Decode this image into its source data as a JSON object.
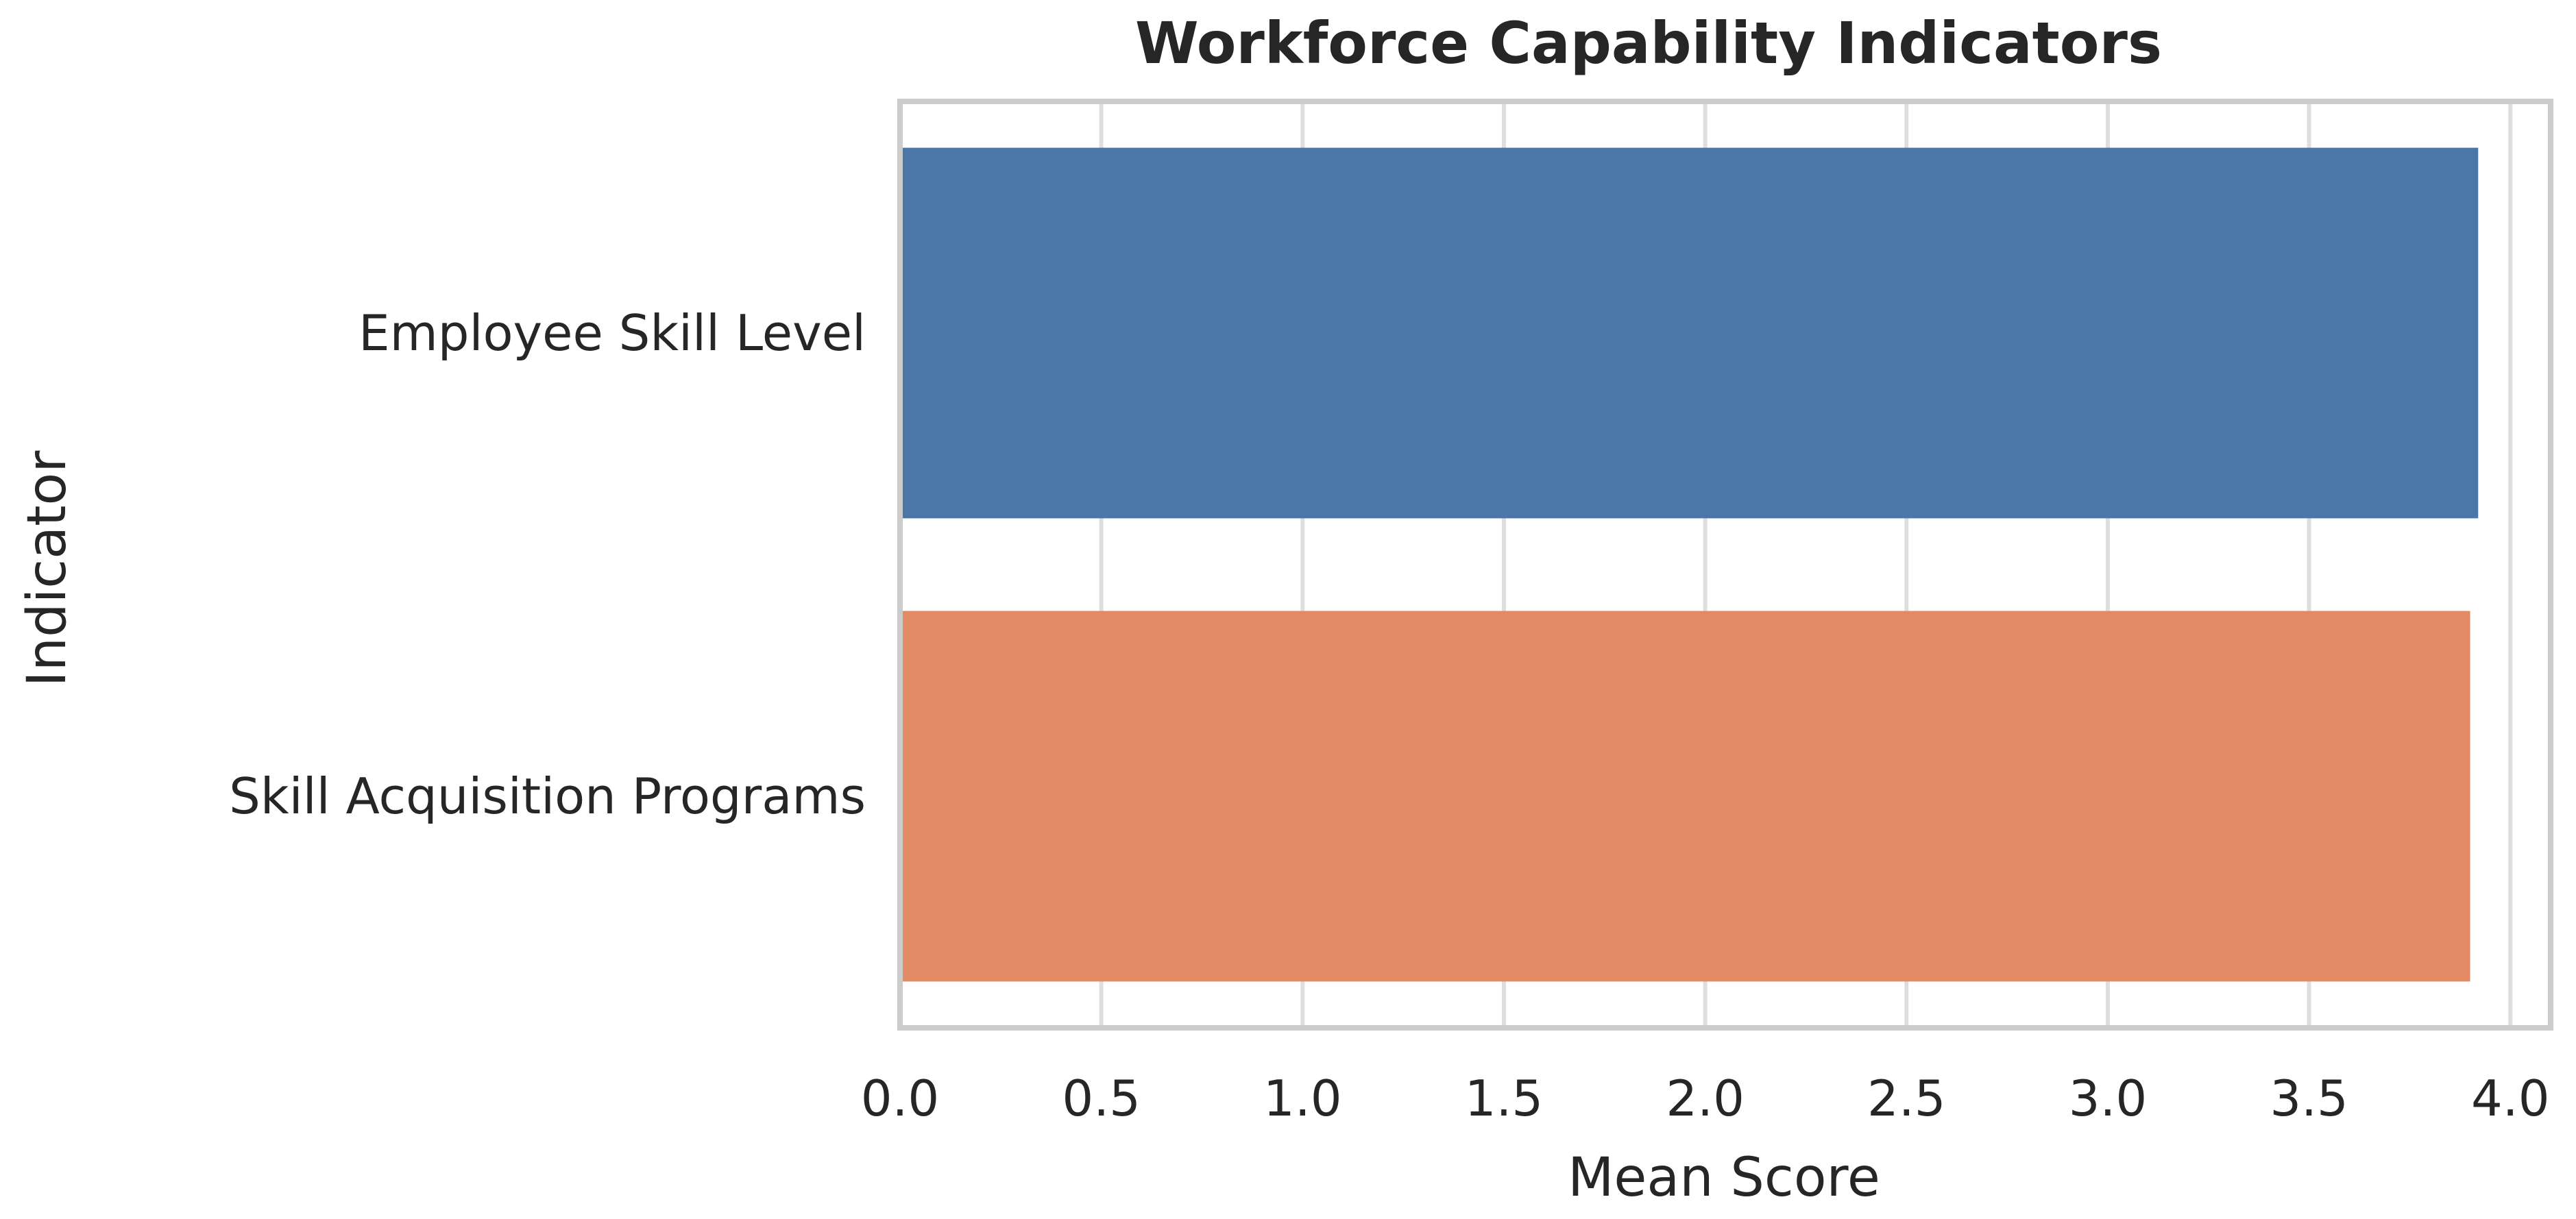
{
  "chart_data": {
    "type": "bar",
    "orientation": "horizontal",
    "title": "Workforce Capability Indicators",
    "xlabel": "Mean Score",
    "ylabel": "Indicator",
    "categories": [
      "Employee Skill Level",
      "Skill Acquisition Programs"
    ],
    "values": [
      3.92,
      3.9
    ],
    "xlim": [
      0,
      4.1
    ],
    "xticks": [
      "0.0",
      "0.5",
      "1.0",
      "1.5",
      "2.0",
      "2.5",
      "3.0",
      "3.5",
      "4.0"
    ],
    "grid": true,
    "colors": [
      "#4a76a8",
      "#e28a63"
    ]
  }
}
